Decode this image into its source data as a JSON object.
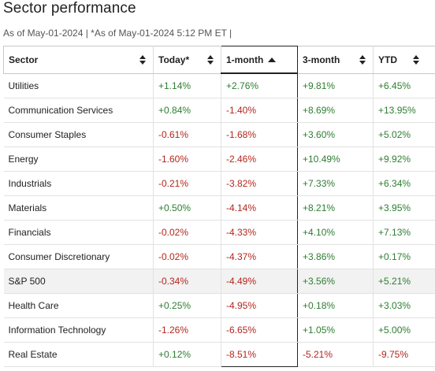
{
  "header": {
    "title": "Sector performance",
    "subtitle": "As of May-01-2024 | *As of May-01-2024 5:12 PM ET |"
  },
  "table": {
    "columns": [
      {
        "label": "Sector",
        "sort": "none"
      },
      {
        "label": "Today*",
        "sort": "none"
      },
      {
        "label": "1-month",
        "sort": "ascending"
      },
      {
        "label": "3-month",
        "sort": "none"
      },
      {
        "label": "YTD",
        "sort": "none"
      }
    ],
    "rows": [
      {
        "sector": "Utilities",
        "today": "+1.14%",
        "one_month": "+2.76%",
        "three_month": "+9.81%",
        "ytd": "+6.45%"
      },
      {
        "sector": "Communication Services",
        "today": "+0.84%",
        "one_month": "-1.40%",
        "three_month": "+8.69%",
        "ytd": "+13.95%"
      },
      {
        "sector": "Consumer Staples",
        "today": "-0.61%",
        "one_month": "-1.68%",
        "three_month": "+3.60%",
        "ytd": "+5.02%"
      },
      {
        "sector": "Energy",
        "today": "-1.60%",
        "one_month": "-2.46%",
        "three_month": "+10.49%",
        "ytd": "+9.92%"
      },
      {
        "sector": "Industrials",
        "today": "-0.21%",
        "one_month": "-3.82%",
        "three_month": "+7.33%",
        "ytd": "+6.34%"
      },
      {
        "sector": "Materials",
        "today": "+0.50%",
        "one_month": "-4.14%",
        "three_month": "+8.21%",
        "ytd": "+3.95%"
      },
      {
        "sector": "Financials",
        "today": "-0.02%",
        "one_month": "-4.33%",
        "three_month": "+4.10%",
        "ytd": "+7.13%"
      },
      {
        "sector": "Consumer Discretionary",
        "today": "-0.02%",
        "one_month": "-4.37%",
        "three_month": "+3.86%",
        "ytd": "+0.17%"
      },
      {
        "sector": "S&P 500",
        "today": "-0.34%",
        "one_month": "-4.49%",
        "three_month": "+3.56%",
        "ytd": "+5.21%"
      },
      {
        "sector": "Health Care",
        "today": "+0.25%",
        "one_month": "-4.95%",
        "three_month": "+0.18%",
        "ytd": "+3.03%"
      },
      {
        "sector": "Information Technology",
        "today": "-1.26%",
        "one_month": "-6.65%",
        "three_month": "+1.05%",
        "ytd": "+5.00%"
      },
      {
        "sector": "Real Estate",
        "today": "+0.12%",
        "one_month": "-8.51%",
        "three_month": "-5.21%",
        "ytd": "-9.75%"
      }
    ],
    "colors": {
      "positive": "#2e7d32",
      "negative": "#b3261e",
      "highlight_row_bg": "#f2f2f2"
    },
    "highlighted_row": "S&P 500"
  }
}
